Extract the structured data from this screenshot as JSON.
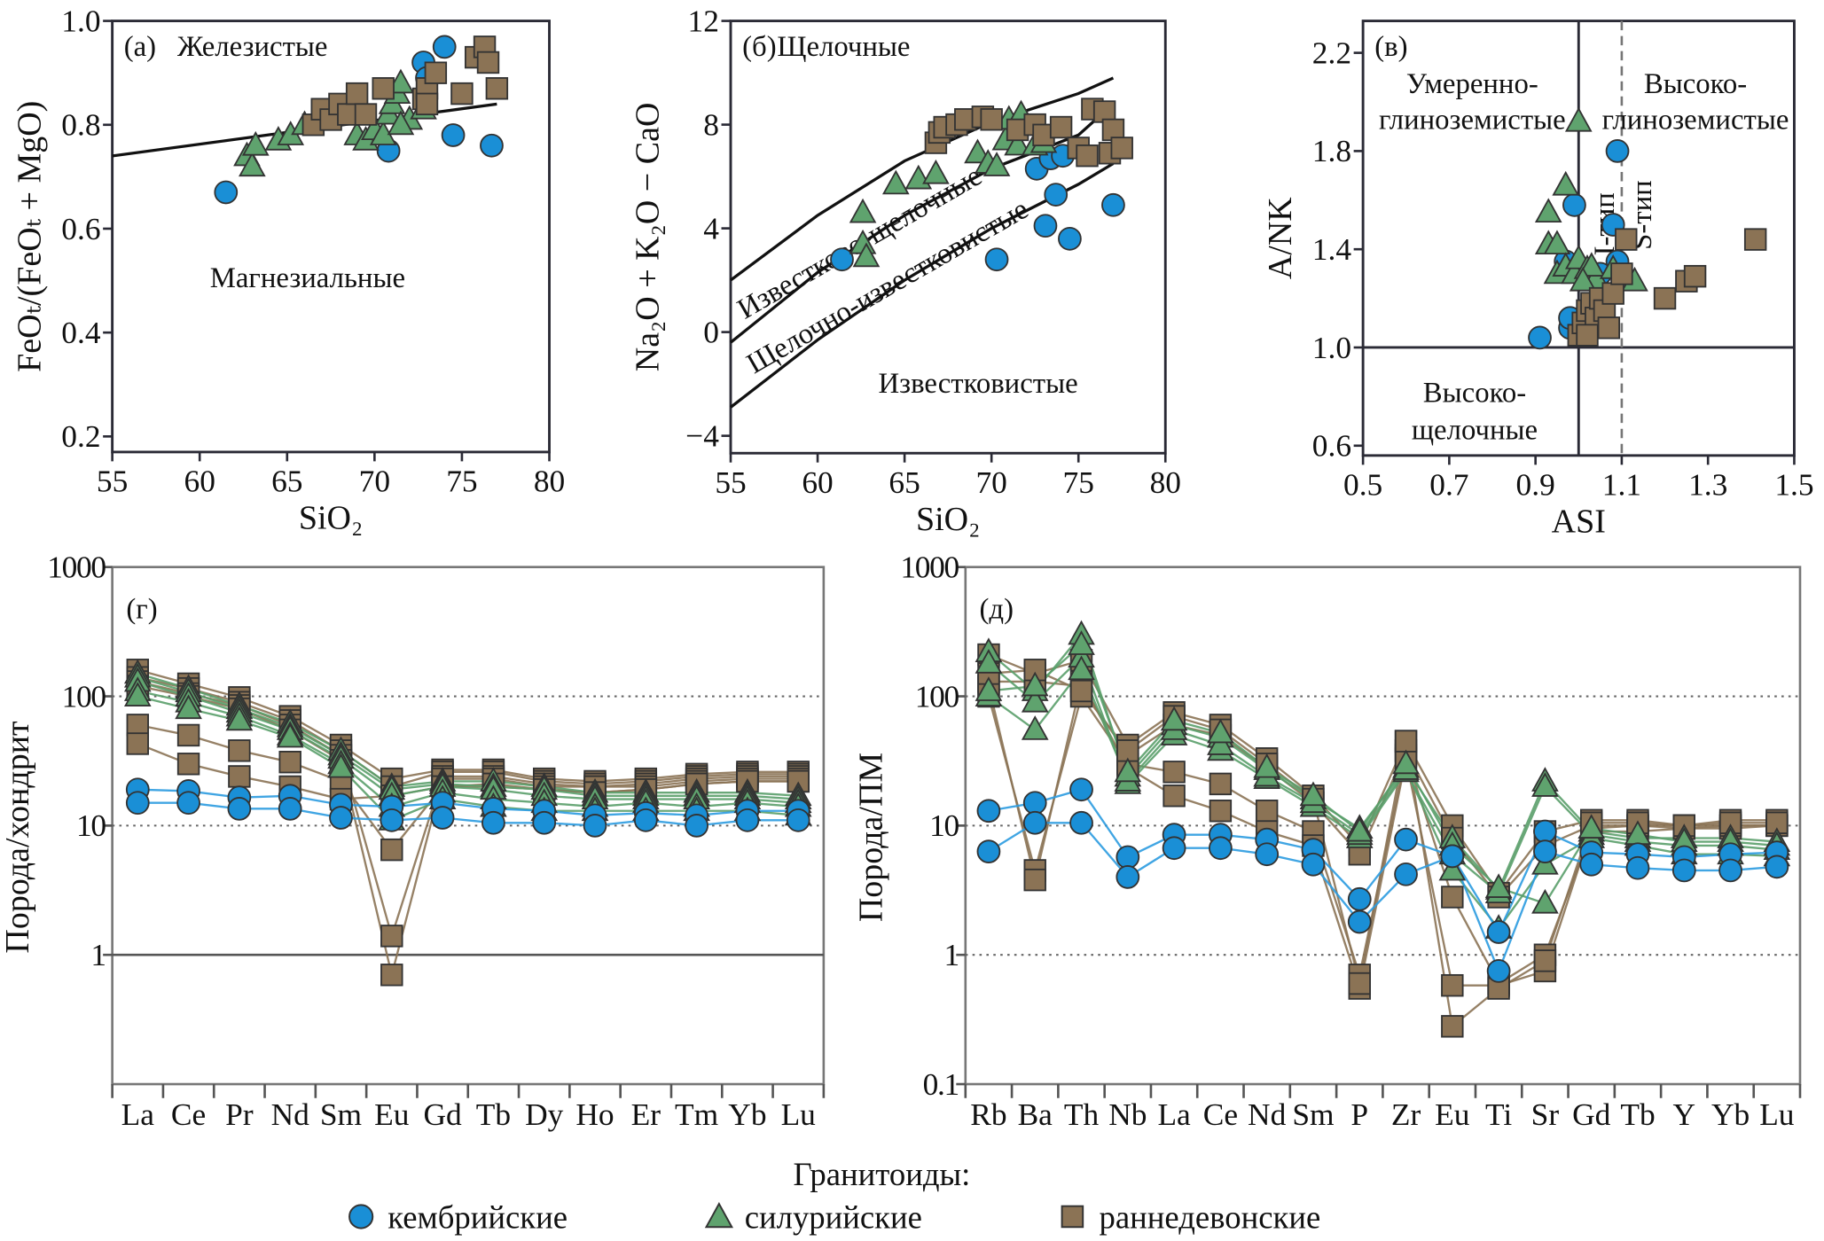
{
  "colors": {
    "cambrian": "#1a8fd6",
    "silurian": "#5fa36e",
    "devonian": "#8b7355",
    "marker_stroke": "#333333",
    "line_cambrian": "#2b9be0",
    "line_silurian": "#5a9e6a",
    "line_devonian": "#8b7355"
  },
  "legend": {
    "title": "Гранитоиды:",
    "items": [
      {
        "label": "кембрийские",
        "marker": "circle"
      },
      {
        "label": "силурийские",
        "marker": "triangle"
      },
      {
        "label": "раннедевонские",
        "marker": "square"
      }
    ]
  },
  "chart_data": [
    {
      "type": "scatter",
      "panel": "(а)",
      "xlabel": "SiO₂",
      "ylabel": "FeOₜ/(FeOₜ + MgO)",
      "xlim": [
        55,
        80
      ],
      "ylim": [
        0.17,
        1.0
      ],
      "xticks": [
        "55",
        "60",
        "65",
        "70",
        "75",
        "80"
      ],
      "yticks": [
        "0.2",
        "0.4",
        "0.6",
        "0.8",
        "1.0"
      ],
      "annotations": [
        "Железистые",
        "Магнезиальные"
      ],
      "boundary": [
        [
          55,
          0.74
        ],
        [
          77,
          0.84
        ]
      ],
      "series": {
        "cambrian": [
          [
            61.5,
            0.67
          ],
          [
            70.8,
            0.75
          ],
          [
            72.8,
            0.92
          ],
          [
            74,
            0.95
          ],
          [
            74.5,
            0.78
          ],
          [
            76.7,
            0.76
          ],
          [
            73,
            0.89
          ]
        ],
        "silurian": [
          [
            62.7,
            0.74
          ],
          [
            63,
            0.72
          ],
          [
            63.2,
            0.76
          ],
          [
            64.5,
            0.77
          ],
          [
            65.2,
            0.78
          ],
          [
            66,
            0.8
          ],
          [
            69,
            0.78
          ],
          [
            69.5,
            0.77
          ],
          [
            70,
            0.79
          ],
          [
            70.5,
            0.78
          ],
          [
            70.8,
            0.82
          ],
          [
            71,
            0.84
          ],
          [
            71.3,
            0.86
          ],
          [
            71.5,
            0.88
          ],
          [
            72,
            0.81
          ],
          [
            72.8,
            0.83
          ],
          [
            71.5,
            0.8
          ]
        ],
        "devonian": [
          [
            66.5,
            0.8
          ],
          [
            67,
            0.83
          ],
          [
            67.5,
            0.81
          ],
          [
            68,
            0.84
          ],
          [
            68.5,
            0.82
          ],
          [
            69,
            0.86
          ],
          [
            69.5,
            0.82
          ],
          [
            70.5,
            0.87
          ],
          [
            72.8,
            0.85
          ],
          [
            73,
            0.87
          ],
          [
            73.5,
            0.9
          ],
          [
            75,
            0.86
          ],
          [
            75.8,
            0.93
          ],
          [
            76.3,
            0.95
          ],
          [
            76.5,
            0.92
          ],
          [
            77,
            0.87
          ],
          [
            73,
            0.84
          ]
        ]
      }
    },
    {
      "type": "scatter",
      "panel": "(б)",
      "xlabel": "SiO₂",
      "ylabel": "Na₂O + K₂O − CaO",
      "xlim": [
        55,
        80
      ],
      "ylim": [
        -4.67,
        12
      ],
      "xticks": [
        "55",
        "60",
        "65",
        "70",
        "75",
        "80"
      ],
      "yticks": [
        "−4",
        "0",
        "4",
        "8",
        "12"
      ],
      "annotations": [
        "Щелочные",
        "Известково-щелочные",
        "Щелочно-известковистые",
        "Известковистые"
      ],
      "boundaries": [
        [
          [
            55,
            2.0
          ],
          [
            60,
            4.5
          ],
          [
            65,
            6.6
          ],
          [
            70,
            8.1
          ],
          [
            75,
            9.2
          ],
          [
            77,
            9.8
          ]
        ],
        [
          [
            55,
            -0.4
          ],
          [
            60,
            2.3
          ],
          [
            65,
            4.5
          ],
          [
            70,
            6.3
          ],
          [
            75,
            7.6
          ],
          [
            76,
            8.2
          ]
        ],
        [
          [
            55,
            -2.9
          ],
          [
            60,
            -0.3
          ],
          [
            65,
            2.0
          ],
          [
            70,
            4.0
          ],
          [
            75,
            5.7
          ],
          [
            77,
            6.5
          ]
        ]
      ],
      "series": {
        "cambrian": [
          [
            61.4,
            2.8
          ],
          [
            70.3,
            2.8
          ],
          [
            72.6,
            6.3
          ],
          [
            73.1,
            4.1
          ],
          [
            73.4,
            6.7
          ],
          [
            73.7,
            5.3
          ],
          [
            74.1,
            6.8
          ],
          [
            74.5,
            3.6
          ],
          [
            77,
            4.9
          ]
        ],
        "silurian": [
          [
            62.6,
            4.6
          ],
          [
            62.6,
            3.4
          ],
          [
            62.8,
            2.9
          ],
          [
            64.5,
            5.7
          ],
          [
            65.8,
            5.9
          ],
          [
            66.8,
            6.1
          ],
          [
            69.2,
            6.9
          ],
          [
            69.8,
            6.5
          ],
          [
            70.3,
            6.4
          ],
          [
            70.8,
            7.4
          ],
          [
            71,
            8.2
          ],
          [
            71.5,
            7.2
          ],
          [
            71.7,
            8.4
          ],
          [
            72.5,
            7.2
          ],
          [
            73,
            7.3
          ]
        ],
        "devonian": [
          [
            66.8,
            7.3
          ],
          [
            67,
            7.7
          ],
          [
            67.3,
            7.9
          ],
          [
            68,
            8
          ],
          [
            68.5,
            8.2
          ],
          [
            69.5,
            8.3
          ],
          [
            70,
            8.2
          ],
          [
            71.5,
            7.8
          ],
          [
            72.5,
            8
          ],
          [
            73,
            7.6
          ],
          [
            74,
            7.9
          ],
          [
            75,
            7.1
          ],
          [
            75.5,
            6.8
          ],
          [
            75.8,
            8.6
          ],
          [
            76.5,
            8.5
          ],
          [
            77,
            7.8
          ],
          [
            76.8,
            6.9
          ],
          [
            77.5,
            7.1
          ]
        ]
      }
    },
    {
      "type": "scatter",
      "panel": "(в)",
      "xlabel": "ASI",
      "ylabel": "A/NK",
      "xlim": [
        0.5,
        1.5
      ],
      "ylim": [
        0.56,
        2.33
      ],
      "xticks": [
        "0.5",
        "0.7",
        "0.9",
        "1.1",
        "1.3",
        "1.5"
      ],
      "yticks": [
        "0.6",
        "1.0",
        "1.4",
        "1.8",
        "2.2"
      ],
      "annotations": [
        "Умеренно-",
        "глиноземистые",
        "Высоко-",
        "глиноземистые",
        "Высоко-",
        "щелочные",
        "I-тип",
        "S-тип"
      ],
      "boundaries": {
        "asi_solid": 1.0,
        "anik_solid": 1.0,
        "asi_dashed": 1.1
      },
      "series": {
        "cambrian": [
          [
            0.91,
            1.04
          ],
          [
            0.98,
            1.08
          ],
          [
            0.98,
            1.12
          ],
          [
            0.97,
            1.35
          ],
          [
            0.99,
            1.58
          ],
          [
            1.08,
            1.5
          ],
          [
            1.09,
            1.8
          ],
          [
            1.05,
            1.3
          ],
          [
            1.09,
            1.35
          ]
        ],
        "silurian": [
          [
            1.0,
            1.92
          ],
          [
            0.97,
            1.66
          ],
          [
            0.93,
            1.55
          ],
          [
            0.93,
            1.42
          ],
          [
            0.95,
            1.42
          ],
          [
            0.95,
            1.3
          ],
          [
            0.97,
            1.33
          ],
          [
            0.99,
            1.3
          ],
          [
            1.0,
            1.36
          ],
          [
            1.02,
            1.32
          ],
          [
            1.04,
            1.28
          ],
          [
            1.03,
            1.33
          ],
          [
            1.01,
            1.27
          ],
          [
            1.08,
            1.32
          ],
          [
            1.13,
            1.27
          ]
        ],
        "devonian": [
          [
            1.0,
            1.05
          ],
          [
            1.01,
            1.1
          ],
          [
            1.02,
            1.15
          ],
          [
            1.03,
            1.18
          ],
          [
            1.04,
            1.12
          ],
          [
            1.05,
            1.2
          ],
          [
            1.06,
            1.15
          ],
          [
            1.07,
            1.08
          ],
          [
            1.08,
            1.22
          ],
          [
            1.1,
            1.3
          ],
          [
            1.11,
            1.44
          ],
          [
            1.2,
            1.2
          ],
          [
            1.25,
            1.27
          ],
          [
            1.27,
            1.29
          ],
          [
            1.41,
            1.44
          ],
          [
            1.02,
            1.05
          ]
        ]
      }
    },
    {
      "type": "line",
      "panel": "(г)",
      "ylabel": "Порода/хондрит",
      "yscale": "log",
      "ylim": [
        0.1,
        1000
      ],
      "yticks": [
        "1",
        "10",
        "100",
        "1000"
      ],
      "gridlines": {
        "dotted": [
          10,
          100
        ],
        "solid": [
          1
        ]
      },
      "categories": [
        "La",
        "Ce",
        "Pr",
        "Nd",
        "Sm",
        "Eu",
        "Gd",
        "Tb",
        "Dy",
        "Ho",
        "Er",
        "Tm",
        "Yb",
        "Lu"
      ],
      "series": {
        "cambrian": [
          [
            19,
            18.5,
            16.5,
            17,
            14.5,
            14,
            15,
            13.5,
            13,
            12,
            12.5,
            12,
            13,
            13
          ],
          [
            15,
            15,
            13.5,
            13.5,
            11.5,
            11,
            11.5,
            10.5,
            10.5,
            10,
            11,
            10,
            11,
            11
          ]
        ],
        "silurian": [
          [
            150,
            115,
            85,
            62,
            38,
            20,
            22,
            22,
            20,
            18,
            18,
            18,
            18,
            17
          ],
          [
            140,
            108,
            80,
            58,
            35,
            19,
            21,
            20,
            19,
            17,
            17,
            17,
            17,
            16
          ],
          [
            130,
            100,
            75,
            55,
            33,
            17,
            20,
            19,
            17,
            16,
            16,
            16,
            16,
            15
          ],
          [
            110,
            90,
            70,
            50,
            30,
            14,
            18,
            16,
            15,
            14,
            15,
            14,
            15,
            14
          ],
          [
            100,
            80,
            65,
            48,
            28,
            11,
            16,
            14,
            13,
            13,
            13,
            13,
            13,
            12
          ]
        ],
        "devonian": [
          [
            160,
            125,
            98,
            70,
            42,
            23,
            27,
            27,
            23,
            22,
            23,
            25,
            26,
            26
          ],
          [
            140,
            115,
            90,
            65,
            38,
            20,
            26,
            26,
            22,
            21,
            22,
            24,
            25,
            25
          ],
          [
            130,
            105,
            85,
            60,
            35,
            1.4,
            24,
            24,
            21,
            20,
            21,
            23,
            24,
            24
          ],
          [
            120,
            100,
            80,
            55,
            32,
            0.7,
            23,
            23,
            20,
            20,
            20,
            22,
            23,
            23
          ],
          [
            60,
            50,
            38,
            31,
            22,
            6.5,
            20,
            20,
            19,
            18,
            19,
            21,
            22,
            22
          ],
          [
            43,
            30,
            24,
            20,
            16,
            17,
            20,
            21,
            19,
            18,
            19,
            21,
            22,
            22
          ]
        ]
      }
    },
    {
      "type": "line",
      "panel": "(д)",
      "ylabel": "Порода/ПМ",
      "yscale": "log",
      "ylim": [
        0.1,
        1000
      ],
      "yticks": [
        "0.1",
        "1",
        "10",
        "100",
        "1000"
      ],
      "gridlines": {
        "dotted": [
          1,
          10,
          100
        ],
        "solid": []
      },
      "categories": [
        "Rb",
        "Ba",
        "Th",
        "Nb",
        "La",
        "Ce",
        "Nd",
        "Sm",
        "P",
        "Zr",
        "Eu",
        "Ti",
        "Sr",
        "Gd",
        "Tb",
        "Y",
        "Yb",
        "Lu"
      ],
      "series": {
        "cambrian": [
          [
            13,
            15,
            19,
            5.7,
            8.5,
            8.5,
            7.8,
            6.5,
            2.7,
            7.8,
            5.8,
            1.5,
            9,
            6.2,
            6,
            5.7,
            6,
            6.2
          ],
          [
            6.3,
            10.5,
            10.5,
            4,
            6.7,
            6.7,
            6,
            5,
            1.8,
            4.2,
            5.8,
            0.75,
            6.3,
            5,
            4.7,
            4.5,
            4.5,
            4.8
          ]
        ],
        "silurian": [
          [
            220,
            110,
            300,
            24,
            60,
            48,
            27,
            16,
            9.5,
            28,
            8,
            3.2,
            22,
            9,
            8,
            8,
            8,
            7.5
          ],
          [
            180,
            90,
            200,
            21,
            50,
            38,
            23,
            14,
            8,
            26,
            6,
            3,
            20,
            8.5,
            7.5,
            7,
            7,
            6.5
          ],
          [
            100,
            55,
            160,
            22,
            55,
            42,
            24,
            15,
            8.5,
            27,
            4.5,
            1.6,
            5,
            8,
            7,
            6,
            6,
            5.8
          ],
          [
            110,
            120,
            250,
            26,
            65,
            52,
            28,
            17,
            9,
            30,
            7,
            3.3,
            2.5,
            9.5,
            8.5,
            7.5,
            7.5,
            7
          ]
        ],
        "devonian": [
          [
            210,
            150,
            190,
            42,
            75,
            60,
            33,
            17,
            7,
            45,
            10,
            3,
            9,
            11,
            11,
            10,
            11,
            11
          ],
          [
            130,
            130,
            120,
            35,
            60,
            50,
            28,
            15,
            6,
            38,
            8,
            2.8,
            7,
            10,
            10,
            9.5,
            10,
            10
          ],
          [
            100,
            4.5,
            100,
            30,
            26,
            21,
            13,
            9,
            0.7,
            35,
            2.8,
            0.6,
            1,
            9,
            9,
            9.5,
            9.5,
            10
          ],
          [
            120,
            3.8,
            130,
            28,
            17,
            13,
            9,
            7,
            0.55,
            33,
            0.58,
            0.58,
            0.75,
            9.5,
            10,
            10,
            10,
            10
          ],
          [
            150,
            160,
            110,
            38,
            70,
            55,
            30,
            16,
            0.6,
            45,
            0.28,
            0.55,
            0.9,
            10.5,
            10.5,
            10,
            10.5,
            10.5
          ]
        ]
      }
    }
  ]
}
